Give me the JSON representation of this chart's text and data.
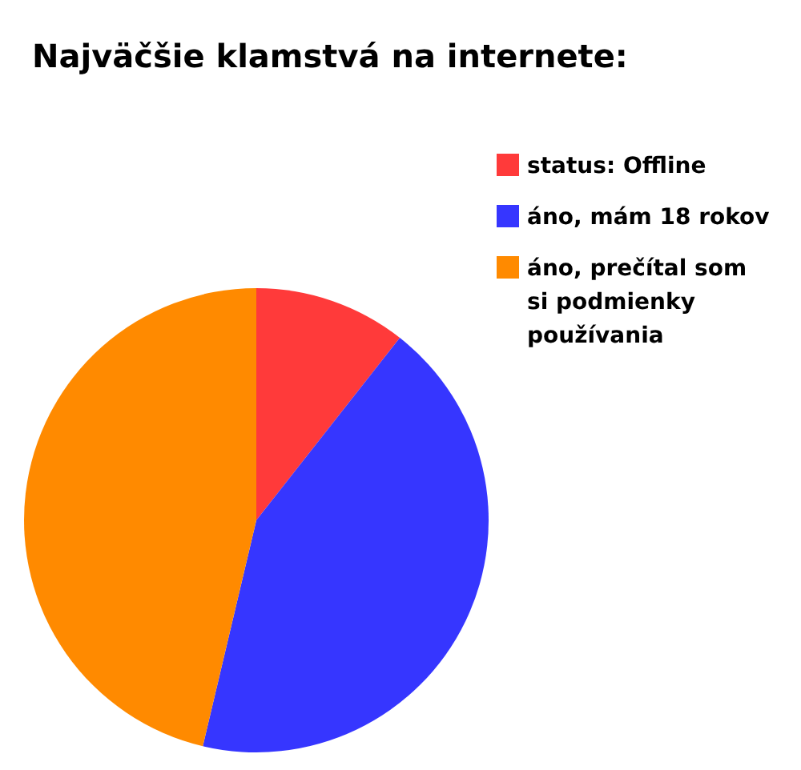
{
  "chart_data": {
    "type": "pie",
    "title": "Najväčšie klamstvá na internete:",
    "categories": [
      "status: Offline",
      "áno, mám 18 rokov",
      "áno, prečítal som si podmienky používania"
    ],
    "values": [
      10.6,
      43.1,
      46.3
    ],
    "colors": [
      "#ff3a3a",
      "#3636ff",
      "#ff8a00"
    ],
    "legend": "top right"
  }
}
